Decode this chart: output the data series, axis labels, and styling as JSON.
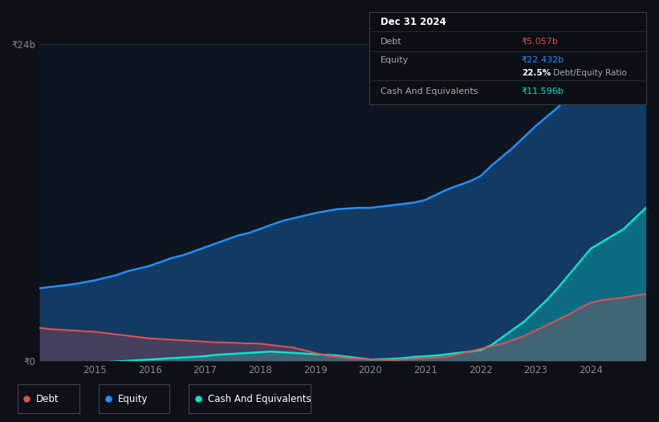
{
  "background_color": "#0d1117",
  "plot_bg_color": "#0d1520",
  "grid_color": "#1e2a38",
  "ylim": [
    0,
    24
  ],
  "y_ticks": [
    0,
    24
  ],
  "y_tick_labels": [
    "₹0",
    "₹24b"
  ],
  "x_ticks": [
    2015,
    2016,
    2017,
    2018,
    2019,
    2020,
    2021,
    2022,
    2023,
    2024
  ],
  "equity_color": "#1e90ff",
  "debt_color": "#e05050",
  "cash_color": "#00e5cc",
  "years": [
    2014.0,
    2014.1,
    2014.2,
    2014.4,
    2014.6,
    2014.8,
    2015.0,
    2015.2,
    2015.4,
    2015.6,
    2015.8,
    2016.0,
    2016.2,
    2016.4,
    2016.6,
    2016.8,
    2017.0,
    2017.2,
    2017.4,
    2017.6,
    2017.8,
    2018.0,
    2018.2,
    2018.4,
    2018.6,
    2018.8,
    2019.0,
    2019.2,
    2019.4,
    2019.6,
    2019.8,
    2020.0,
    2020.2,
    2020.4,
    2020.6,
    2020.8,
    2021.0,
    2021.2,
    2021.4,
    2021.6,
    2021.8,
    2022.0,
    2022.2,
    2022.4,
    2022.6,
    2022.8,
    2023.0,
    2023.2,
    2023.4,
    2023.6,
    2023.8,
    2024.0,
    2024.2,
    2024.4,
    2024.6,
    2024.8,
    2025.0
  ],
  "equity": [
    5.5,
    5.55,
    5.6,
    5.7,
    5.8,
    5.95,
    6.1,
    6.3,
    6.5,
    6.8,
    7.0,
    7.2,
    7.5,
    7.8,
    8.0,
    8.3,
    8.6,
    8.9,
    9.2,
    9.5,
    9.7,
    10.0,
    10.3,
    10.6,
    10.8,
    11.0,
    11.2,
    11.35,
    11.5,
    11.55,
    11.6,
    11.6,
    11.7,
    11.8,
    11.9,
    12.0,
    12.2,
    12.6,
    13.0,
    13.3,
    13.6,
    14.0,
    14.8,
    15.5,
    16.2,
    17.0,
    17.8,
    18.5,
    19.2,
    20.0,
    20.8,
    21.5,
    21.8,
    22.0,
    22.2,
    22.35,
    22.432
  ],
  "debt": [
    2.5,
    2.45,
    2.4,
    2.35,
    2.3,
    2.25,
    2.2,
    2.1,
    2.0,
    1.9,
    1.8,
    1.7,
    1.65,
    1.6,
    1.55,
    1.5,
    1.45,
    1.4,
    1.38,
    1.35,
    1.32,
    1.3,
    1.2,
    1.1,
    1.0,
    0.8,
    0.6,
    0.4,
    0.3,
    0.2,
    0.15,
    0.1,
    0.08,
    0.05,
    0.1,
    0.15,
    0.2,
    0.25,
    0.3,
    0.5,
    0.7,
    0.9,
    1.1,
    1.3,
    1.6,
    1.9,
    2.3,
    2.7,
    3.1,
    3.5,
    4.0,
    4.4,
    4.6,
    4.7,
    4.8,
    4.95,
    5.057
  ],
  "cash": [
    -0.4,
    -0.4,
    -0.35,
    -0.3,
    -0.25,
    -0.2,
    -0.15,
    -0.1,
    -0.05,
    0.0,
    0.05,
    0.1,
    0.15,
    0.2,
    0.25,
    0.3,
    0.35,
    0.45,
    0.5,
    0.55,
    0.6,
    0.65,
    0.7,
    0.65,
    0.6,
    0.55,
    0.5,
    0.45,
    0.4,
    0.3,
    0.2,
    0.1,
    0.12,
    0.15,
    0.2,
    0.3,
    0.35,
    0.4,
    0.5,
    0.6,
    0.7,
    0.8,
    1.2,
    1.8,
    2.4,
    3.0,
    3.8,
    4.6,
    5.5,
    6.5,
    7.5,
    8.5,
    9.0,
    9.5,
    10.0,
    10.8,
    11.596
  ],
  "tooltip_title": "Dec 31 2024",
  "tooltip_debt_label": "Debt",
  "tooltip_debt_value": "₹5.057b",
  "tooltip_equity_label": "Equity",
  "tooltip_equity_value": "₹22.432b",
  "tooltip_ratio_bold": "22.5%",
  "tooltip_ratio_normal": " Debt/Equity Ratio",
  "tooltip_cash_label": "Cash And Equivalents",
  "tooltip_cash_value": "₹11.596b",
  "legend_items": [
    {
      "label": "Debt",
      "color": "#e05050"
    },
    {
      "label": "Equity",
      "color": "#1e90ff"
    },
    {
      "label": "Cash And Equivalents",
      "color": "#00e5cc"
    }
  ]
}
